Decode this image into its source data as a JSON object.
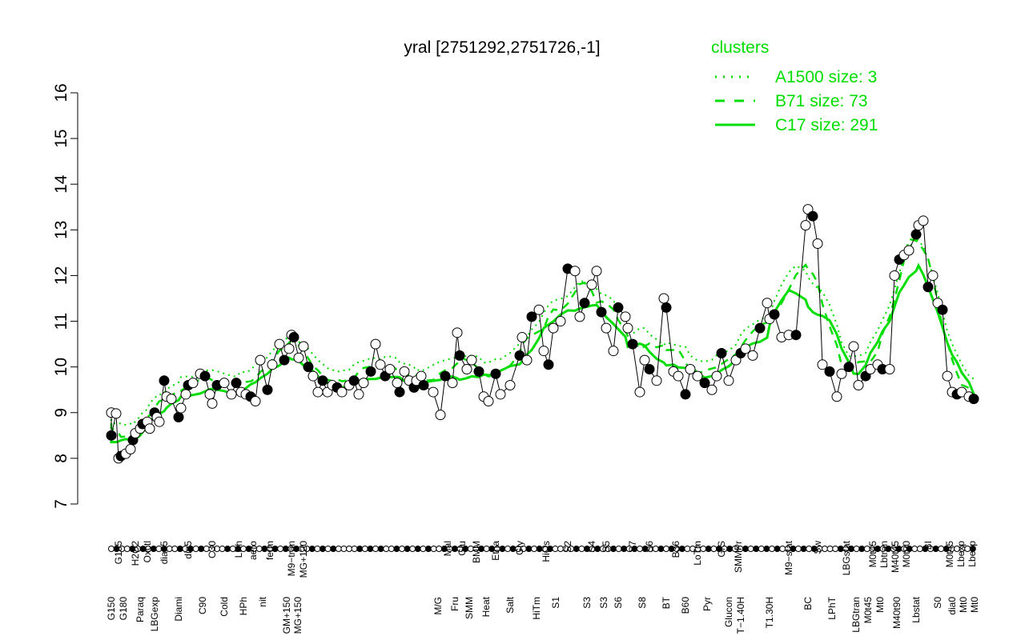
{
  "chart_data": {
    "type": "line",
    "title": "yral [2751292,2751726,-1]",
    "xlabel": "",
    "ylabel": "",
    "ylim": [
      7,
      16
    ],
    "xlim": [
      0,
      373
    ],
    "yticks": [
      7,
      8,
      9,
      10,
      11,
      12,
      13,
      14,
      15,
      16
    ],
    "legend": {
      "title": "clusters",
      "placement": "top-right",
      "color": "#00dd00",
      "entries": [
        {
          "label": "A1500 size: 3",
          "style": "dotted"
        },
        {
          "label": "B71 size: 73",
          "style": "dashed"
        },
        {
          "label": "C17 size: 291",
          "style": "solid"
        }
      ]
    },
    "points": [
      [
        13,
        9.0
      ],
      [
        13,
        8.5
      ],
      [
        15,
        8.98
      ],
      [
        16,
        8.0
      ],
      [
        17,
        8.05
      ],
      [
        19,
        8.1
      ],
      [
        21,
        8.2
      ],
      [
        22,
        8.4
      ],
      [
        23,
        8.55
      ],
      [
        25,
        8.65
      ],
      [
        26,
        8.75
      ],
      [
        28,
        8.8
      ],
      [
        29,
        8.65
      ],
      [
        31,
        9.0
      ],
      [
        32,
        8.9
      ],
      [
        33,
        8.8
      ],
      [
        35,
        9.7
      ],
      [
        36,
        9.35
      ],
      [
        38,
        9.3
      ],
      [
        41,
        8.9
      ],
      [
        42,
        9.1
      ],
      [
        44,
        9.4
      ],
      [
        45,
        9.6
      ],
      [
        47,
        9.65
      ],
      [
        50,
        9.85
      ],
      [
        52,
        9.8
      ],
      [
        54,
        9.4
      ],
      [
        55,
        9.2
      ],
      [
        57,
        9.6
      ],
      [
        60,
        9.65
      ],
      [
        63,
        9.4
      ],
      [
        65,
        9.65
      ],
      [
        67,
        9.45
      ],
      [
        69,
        9.4
      ],
      [
        71,
        9.35
      ],
      [
        73,
        9.25
      ],
      [
        75,
        10.15
      ],
      [
        78,
        9.5
      ],
      [
        80,
        10.05
      ],
      [
        83,
        10.5
      ],
      [
        85,
        10.15
      ],
      [
        87,
        10.4
      ],
      [
        88,
        10.7
      ],
      [
        89,
        10.65
      ],
      [
        91,
        10.2
      ],
      [
        93,
        10.45
      ],
      [
        95,
        10.0
      ],
      [
        97,
        9.8
      ],
      [
        99,
        9.45
      ],
      [
        101,
        9.7
      ],
      [
        103,
        9.45
      ],
      [
        105,
        9.6
      ],
      [
        107,
        9.55
      ],
      [
        109,
        9.45
      ],
      [
        112,
        9.6
      ],
      [
        114,
        9.7
      ],
      [
        116,
        9.4
      ],
      [
        118,
        9.65
      ],
      [
        121,
        9.9
      ],
      [
        123,
        10.5
      ],
      [
        125,
        10.05
      ],
      [
        127,
        9.8
      ],
      [
        129,
        9.95
      ],
      [
        132,
        9.65
      ],
      [
        133,
        9.45
      ],
      [
        135,
        9.9
      ],
      [
        137,
        9.7
      ],
      [
        139,
        9.55
      ],
      [
        140,
        9.7
      ],
      [
        142,
        9.8
      ],
      [
        143,
        9.6
      ],
      [
        147,
        9.45
      ],
      [
        150,
        8.95
      ],
      [
        152,
        9.8
      ],
      [
        155,
        9.65
      ],
      [
        157,
        10.75
      ],
      [
        158,
        10.25
      ],
      [
        161,
        9.95
      ],
      [
        163,
        10.15
      ],
      [
        166,
        9.9
      ],
      [
        168,
        9.35
      ],
      [
        170,
        9.25
      ],
      [
        173,
        9.85
      ],
      [
        175,
        9.4
      ],
      [
        179,
        9.6
      ],
      [
        183,
        10.25
      ],
      [
        184,
        10.65
      ],
      [
        186,
        10.15
      ],
      [
        188,
        11.1
      ],
      [
        191,
        11.25
      ],
      [
        193,
        10.35
      ],
      [
        195,
        10.05
      ],
      [
        197,
        10.85
      ],
      [
        200,
        11.0
      ],
      [
        203,
        12.15
      ],
      [
        206,
        12.1
      ],
      [
        208,
        11.1
      ],
      [
        210,
        11.4
      ],
      [
        213,
        11.8
      ],
      [
        215,
        12.1
      ],
      [
        217,
        11.2
      ],
      [
        219,
        10.85
      ],
      [
        222,
        10.35
      ],
      [
        224,
        11.3
      ],
      [
        227,
        11.1
      ],
      [
        228,
        10.85
      ],
      [
        230,
        10.5
      ],
      [
        233,
        9.45
      ],
      [
        235,
        10.15
      ],
      [
        237,
        9.95
      ],
      [
        240,
        9.7
      ],
      [
        243,
        11.5
      ],
      [
        244,
        11.3
      ],
      [
        247,
        9.9
      ],
      [
        249,
        9.8
      ],
      [
        252,
        9.4
      ],
      [
        254,
        9.95
      ],
      [
        257,
        9.8
      ],
      [
        260,
        9.65
      ],
      [
        263,
        9.5
      ],
      [
        265,
        9.8
      ],
      [
        267,
        10.3
      ],
      [
        270,
        9.7
      ],
      [
        273,
        10.15
      ],
      [
        275,
        10.3
      ],
      [
        277,
        10.4
      ],
      [
        280,
        10.25
      ],
      [
        283,
        10.85
      ],
      [
        286,
        11.4
      ],
      [
        287,
        11.05
      ],
      [
        289,
        11.15
      ],
      [
        292,
        10.65
      ],
      [
        295,
        10.7
      ],
      [
        298,
        10.7
      ],
      [
        302,
        13.1
      ],
      [
        303,
        13.45
      ],
      [
        305,
        13.3
      ],
      [
        307,
        12.7
      ],
      [
        309,
        10.05
      ],
      [
        312,
        9.9
      ],
      [
        315,
        9.35
      ],
      [
        317,
        9.85
      ],
      [
        320,
        10.0
      ],
      [
        322,
        10.45
      ],
      [
        324,
        9.6
      ],
      [
        327,
        9.8
      ],
      [
        329,
        9.95
      ],
      [
        332,
        10.05
      ],
      [
        334,
        9.95
      ],
      [
        337,
        9.95
      ],
      [
        339,
        12.0
      ],
      [
        341,
        12.35
      ],
      [
        343,
        12.45
      ],
      [
        345,
        12.55
      ],
      [
        348,
        12.9
      ],
      [
        349,
        13.1
      ],
      [
        351,
        13.2
      ],
      [
        353,
        11.75
      ],
      [
        355,
        12.0
      ],
      [
        357,
        11.4
      ],
      [
        359,
        11.25
      ],
      [
        361,
        9.8
      ],
      [
        363,
        9.45
      ],
      [
        365,
        9.4
      ],
      [
        367,
        9.45
      ],
      [
        370,
        9.35
      ],
      [
        372,
        9.3
      ]
    ],
    "xlabels_top": [
      [
        "G135",
        16
      ],
      [
        "H2O2",
        23
      ],
      [
        "Oxctl",
        28
      ],
      [
        "dia15",
        35
      ],
      [
        "dia5",
        45
      ],
      [
        "C30",
        55
      ],
      [
        "LPh",
        66
      ],
      [
        "aero",
        72
      ],
      [
        "ferm",
        79
      ],
      [
        "M9−tran",
        88
      ],
      [
        "MG+120",
        93
      ],
      [
        "Mal",
        153
      ],
      [
        "Glu",
        159
      ],
      [
        "BMM",
        165
      ],
      [
        "Etha",
        173
      ],
      [
        "Gly",
        183
      ],
      [
        "HiOs",
        194
      ],
      [
        "S2",
        203
      ],
      [
        "S4",
        213
      ],
      [
        "S5",
        219
      ],
      [
        "S7",
        230
      ],
      [
        "S6",
        237
      ],
      [
        "B36",
        248
      ],
      [
        "LoTm",
        257
      ],
      [
        "G/S",
        267
      ],
      [
        "SMMPr",
        274
      ],
      [
        "M9−stat",
        295
      ],
      [
        "Sw",
        307
      ],
      [
        "LBGstat",
        319
      ],
      [
        "M0t45",
        330
      ],
      [
        "Lbtran",
        334
      ],
      [
        "M40t45",
        339
      ],
      [
        "M0t90",
        344
      ],
      [
        "BI",
        353
      ],
      [
        "M0t45",
        362
      ],
      [
        "Lbexp",
        366
      ],
      [
        "Lbexp",
        369
      ]
    ],
    "xlabels_bottom": [
      [
        "G150",
        13
      ],
      [
        "G180",
        18
      ],
      [
        "Paraq",
        25
      ],
      [
        "LBGexp",
        31
      ],
      [
        "Diami",
        41
      ],
      [
        "C90",
        51
      ],
      [
        "Cold",
        60
      ],
      [
        "HPh",
        68
      ],
      [
        "nit",
        76
      ],
      [
        "GM+150",
        86
      ],
      [
        "MG+150",
        90
      ],
      [
        "M/G",
        149
      ],
      [
        "Fru",
        156
      ],
      [
        "SMM",
        162
      ],
      [
        "Heat",
        169
      ],
      [
        "Salt",
        179
      ],
      [
        "HiTm",
        190
      ],
      [
        "S1",
        198
      ],
      [
        "S3",
        211
      ],
      [
        "S3",
        218
      ],
      [
        "S6",
        224
      ],
      [
        "S8",
        234
      ],
      [
        "BT",
        244
      ],
      [
        "B60",
        252
      ],
      [
        "Pyr",
        261
      ],
      [
        "Glucon",
        270
      ],
      [
        "T−1.40H",
        275
      ],
      [
        "T1.30H",
        287
      ],
      [
        "BC",
        303
      ],
      [
        "LPhT",
        313
      ],
      [
        "LBGtran",
        323
      ],
      [
        "M0t45",
        328
      ],
      [
        "Mt0",
        333
      ],
      [
        "M40t90",
        340
      ],
      [
        "Lbstat",
        348
      ],
      [
        "S0",
        357
      ],
      [
        "dia0",
        363
      ],
      [
        "Mt0",
        366
      ],
      [
        "Mt0",
        369
      ]
    ]
  }
}
